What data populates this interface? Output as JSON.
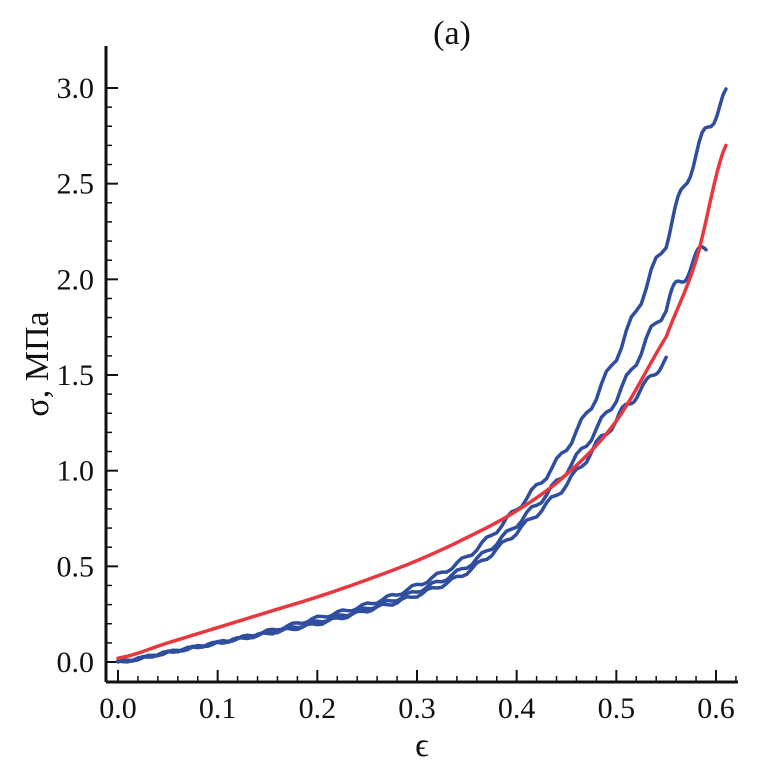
{
  "chart_data": {
    "type": "line",
    "panel_label": "(a)",
    "xlabel": "ϵ",
    "ylabel": "σ, МПа",
    "xlim": [
      0.0,
      0.62
    ],
    "ylim": [
      0.0,
      3.1
    ],
    "xticks": [
      0.0,
      0.1,
      0.2,
      0.3,
      0.4,
      0.5,
      0.6
    ],
    "xtick_labels": [
      "0.0",
      "0.1",
      "0.2",
      "0.3",
      "0.4",
      "0.5",
      "0.6"
    ],
    "yticks": [
      0.0,
      0.5,
      1.0,
      1.5,
      2.0,
      2.5,
      3.0
    ],
    "ytick_labels": [
      "0.0",
      "0.5",
      "1.0",
      "1.5",
      "2.0",
      "2.5",
      "3.0"
    ],
    "grid": false,
    "legend": "none",
    "series": [
      {
        "color": "#2f4ea0",
        "kind": "experimental",
        "x": [
          0.0,
          0.05,
          0.1,
          0.15,
          0.2,
          0.25,
          0.3,
          0.35,
          0.4,
          0.45,
          0.5,
          0.55,
          0.58,
          0.61
        ],
        "y": [
          0.0,
          0.05,
          0.1,
          0.16,
          0.23,
          0.3,
          0.4,
          0.55,
          0.8,
          1.12,
          1.6,
          2.2,
          2.65,
          2.95
        ]
      },
      {
        "color": "#2f4ea0",
        "kind": "experimental",
        "x": [
          0.0,
          0.05,
          0.1,
          0.15,
          0.2,
          0.25,
          0.3,
          0.35,
          0.4,
          0.45,
          0.5,
          0.55,
          0.57,
          0.59
        ],
        "y": [
          0.0,
          0.05,
          0.1,
          0.15,
          0.21,
          0.28,
          0.37,
          0.5,
          0.72,
          1.0,
          1.38,
          1.85,
          2.03,
          2.17
        ]
      },
      {
        "color": "#2f4ea0",
        "kind": "experimental",
        "x": [
          0.0,
          0.05,
          0.1,
          0.15,
          0.2,
          0.25,
          0.3,
          0.35,
          0.4,
          0.45,
          0.5,
          0.53,
          0.55
        ],
        "y": [
          0.0,
          0.05,
          0.1,
          0.15,
          0.2,
          0.27,
          0.35,
          0.47,
          0.68,
          0.93,
          1.26,
          1.45,
          1.58
        ]
      },
      {
        "color": "#e8383f",
        "kind": "model",
        "x": [
          0.0,
          0.05,
          0.1,
          0.15,
          0.2,
          0.25,
          0.3,
          0.35,
          0.4,
          0.45,
          0.5,
          0.55,
          0.58,
          0.61
        ],
        "y": [
          0.02,
          0.1,
          0.18,
          0.26,
          0.34,
          0.43,
          0.53,
          0.65,
          0.79,
          0.98,
          1.26,
          1.7,
          2.1,
          2.7
        ]
      }
    ]
  }
}
